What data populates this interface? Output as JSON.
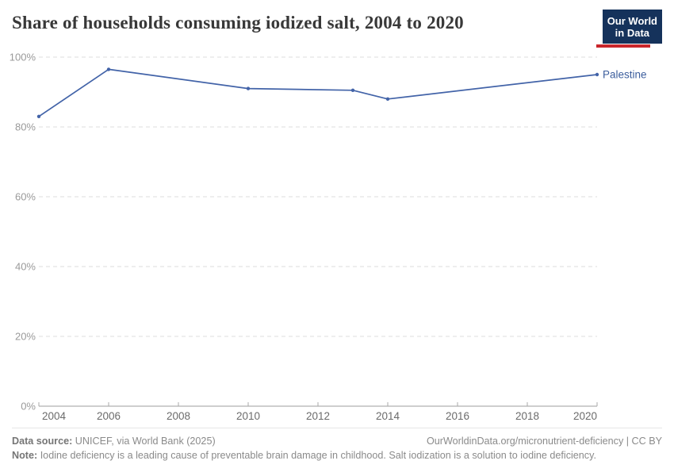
{
  "header": {
    "title": "Share of households consuming iodized salt, 2004 to 2020",
    "logo": {
      "line1": "Our World",
      "line2": "in Data"
    }
  },
  "chart_data": {
    "type": "line",
    "title": "Share of households consuming iodized salt, 2004 to 2020",
    "xlabel": "",
    "ylabel": "",
    "xlim": [
      2004,
      2020
    ],
    "ylim": [
      0,
      100
    ],
    "grid": "horizontal-dashed",
    "legend_position": "line-end-label",
    "x_ticks": [
      {
        "value": 2004,
        "label": "2004"
      },
      {
        "value": 2006,
        "label": "2006"
      },
      {
        "value": 2008,
        "label": "2008"
      },
      {
        "value": 2010,
        "label": "2010"
      },
      {
        "value": 2012,
        "label": "2012"
      },
      {
        "value": 2014,
        "label": "2014"
      },
      {
        "value": 2016,
        "label": "2016"
      },
      {
        "value": 2018,
        "label": "2018"
      },
      {
        "value": 2020,
        "label": "2020"
      }
    ],
    "y_ticks": [
      {
        "value": 0,
        "label": "0%"
      },
      {
        "value": 20,
        "label": "20%"
      },
      {
        "value": 40,
        "label": "40%"
      },
      {
        "value": 60,
        "label": "60%"
      },
      {
        "value": 80,
        "label": "80%"
      },
      {
        "value": 100,
        "label": "100%"
      }
    ],
    "series": [
      {
        "name": "Palestine",
        "color": "#4263a8",
        "label_color": "#3c5e9d",
        "points": [
          {
            "x": 2004,
            "y": 83
          },
          {
            "x": 2006,
            "y": 96.5
          },
          {
            "x": 2010,
            "y": 91
          },
          {
            "x": 2013,
            "y": 90.5
          },
          {
            "x": 2014,
            "y": 88
          },
          {
            "x": 2020,
            "y": 95
          }
        ]
      }
    ]
  },
  "footer": {
    "datasource_label": "Data source:",
    "datasource_text": "UNICEF, via World Bank (2025)",
    "attribution": "OurWorldinData.org/micronutrient-deficiency | CC BY",
    "note_label": "Note:",
    "note_text": "Iodine deficiency is a leading cause of preventable brain damage in childhood. Salt iodization is a solution to iodine deficiency."
  },
  "colors": {
    "logo_bg": "#15325b",
    "logo_accent": "#c9252b",
    "axis_line": "#9e9e9e",
    "tick_mark": "#aaaaaa",
    "gridline": "#dedede",
    "y_tick_text": "#9a9a9a",
    "x_tick_text": "#6b6b6b"
  }
}
